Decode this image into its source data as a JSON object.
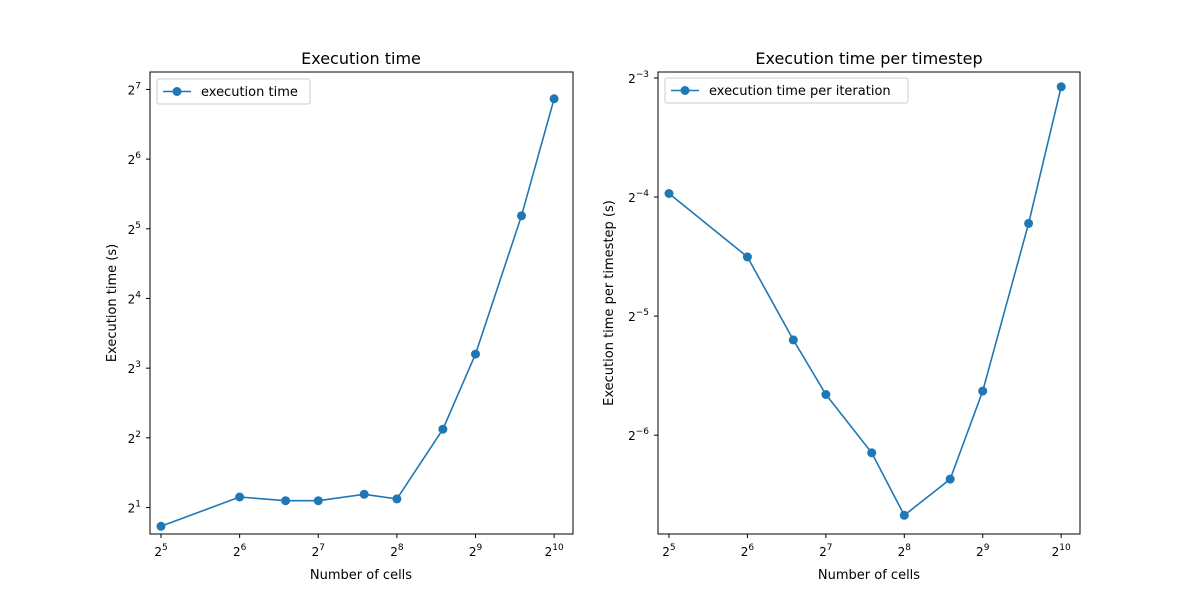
{
  "figure": {
    "background": "#ffffff",
    "series_color": "#1f77b4"
  },
  "chart_data": [
    {
      "type": "line",
      "title": "Execution time",
      "xlabel": "Number of cells",
      "ylabel": "Execution time (s)",
      "xscale": "log2",
      "yscale": "log2",
      "xlim_log2": [
        4.86,
        10.24
      ],
      "ylim_log2": [
        0.62,
        7.25
      ],
      "xticks": [
        {
          "base": "2",
          "exp": "5",
          "value": 32
        },
        {
          "base": "2",
          "exp": "6",
          "value": 64
        },
        {
          "base": "2",
          "exp": "7",
          "value": 128
        },
        {
          "base": "2",
          "exp": "8",
          "value": 256
        },
        {
          "base": "2",
          "exp": "9",
          "value": 512
        },
        {
          "base": "2",
          "exp": "10",
          "value": 1024
        }
      ],
      "yticks": [
        {
          "base": "2",
          "exp": "1",
          "value": 2
        },
        {
          "base": "2",
          "exp": "2",
          "value": 4
        },
        {
          "base": "2",
          "exp": "3",
          "value": 8
        },
        {
          "base": "2",
          "exp": "4",
          "value": 16
        },
        {
          "base": "2",
          "exp": "5",
          "value": 32
        },
        {
          "base": "2",
          "exp": "6",
          "value": 64
        },
        {
          "base": "2",
          "exp": "7",
          "value": 128
        }
      ],
      "legend": {
        "loc": "upper left"
      },
      "series": [
        {
          "name": "execution time",
          "x": [
            32,
            64,
            96,
            128,
            192,
            256,
            384,
            512,
            768,
            1024
          ],
          "y": [
            1.66,
            2.22,
            2.14,
            2.14,
            2.28,
            2.18,
            4.36,
            9.2,
            36.4,
            116.6
          ]
        }
      ]
    },
    {
      "type": "line",
      "title": "Execution time per timestep",
      "xlabel": "Number of cells",
      "ylabel": "Execution time per timestep (s)",
      "xscale": "log2",
      "yscale": "log2",
      "xlim_log2": [
        4.86,
        10.24
      ],
      "ylim_log2": [
        -6.83,
        -2.95
      ],
      "xticks": [
        {
          "base": "2",
          "exp": "5",
          "value": 32
        },
        {
          "base": "2",
          "exp": "6",
          "value": 64
        },
        {
          "base": "2",
          "exp": "7",
          "value": 128
        },
        {
          "base": "2",
          "exp": "8",
          "value": 256
        },
        {
          "base": "2",
          "exp": "9",
          "value": 512
        },
        {
          "base": "2",
          "exp": "10",
          "value": 1024
        }
      ],
      "yticks": [
        {
          "base": "2",
          "exp": "−6",
          "value": 0.015625
        },
        {
          "base": "2",
          "exp": "−5",
          "value": 0.03125
        },
        {
          "base": "2",
          "exp": "−4",
          "value": 0.0625
        },
        {
          "base": "2",
          "exp": "−3",
          "value": 0.125
        }
      ],
      "legend": {
        "loc": "upper left"
      },
      "series": [
        {
          "name": "execution time per iteration",
          "x": [
            32,
            64,
            96,
            128,
            192,
            256,
            384,
            512,
            768,
            1024
          ],
          "y": [
            0.0638,
            0.0441,
            0.0272,
            0.0198,
            0.0141,
            0.0098,
            0.0121,
            0.0202,
            0.0536,
            0.1187
          ]
        }
      ]
    }
  ]
}
